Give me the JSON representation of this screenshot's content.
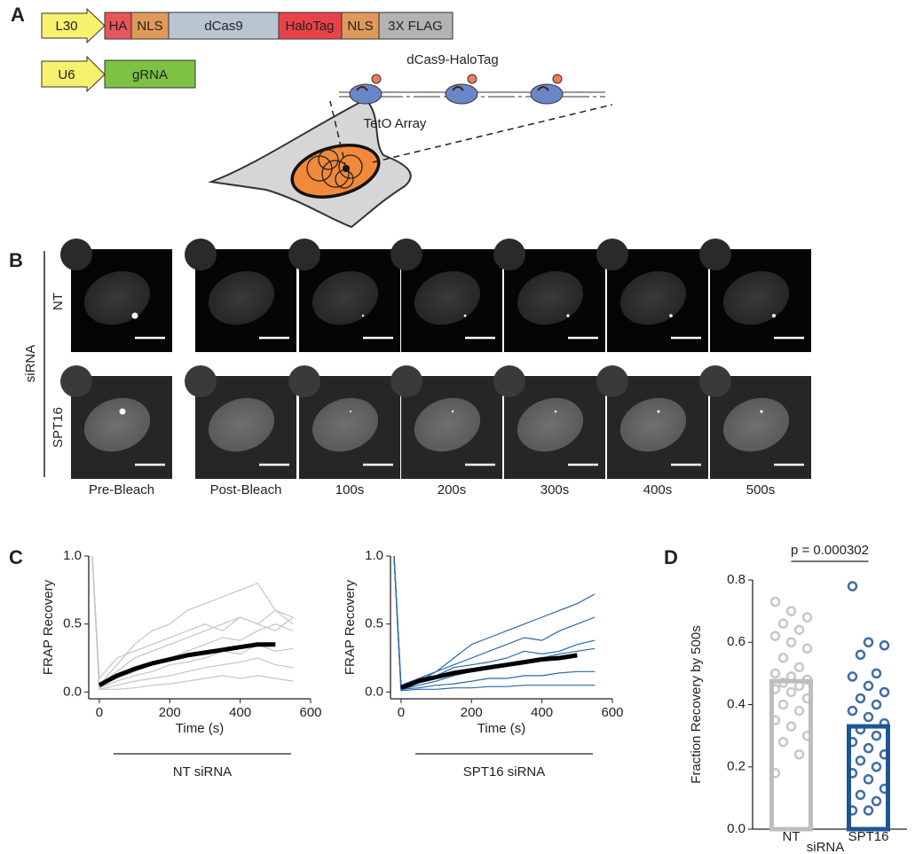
{
  "panel_labels": [
    "A",
    "B",
    "C",
    "D"
  ],
  "construct": {
    "promoter_1": "L30",
    "domains": [
      "HA",
      "NLS",
      "dCas9",
      "HaloTag",
      "NLS",
      "3X FLAG"
    ],
    "promoter_2": "U6",
    "guide": "gRNA",
    "protein_label": "dCas9-HaloTag",
    "array_label": "TetO Array"
  },
  "microscopy": {
    "group_label": "siRNA",
    "rows": [
      "NT",
      "SPT16"
    ],
    "timepoints": [
      "Pre-Bleach",
      "Post-Bleach",
      "100s",
      "200s",
      "300s",
      "400s",
      "500s"
    ]
  },
  "chart_data": [
    {
      "type": "line",
      "x": [
        -20,
        0,
        50,
        100,
        150,
        200,
        250,
        300,
        350,
        400,
        450,
        500,
        550
      ],
      "xlim": [
        -30,
        600
      ],
      "xticks": [
        0,
        200,
        400,
        600
      ],
      "ylim": [
        -0.05,
        1.0
      ],
      "yticks": [
        {
          "value": 0,
          "label": "0.0"
        },
        {
          "value": 0.5,
          "label": "0.5"
        },
        {
          "value": 1,
          "label": "1.0"
        }
      ],
      "xlabel": "Time (s)",
      "ylabel": "FRAP Recovery",
      "group_label": "NT siRNA",
      "series": [
        {
          "color": "#c4c4c4",
          "values": [
            1,
            0.05,
            0.2,
            0.35,
            0.45,
            0.5,
            0.6,
            0.65,
            0.7,
            0.75,
            0.8,
            0.6,
            0.55
          ]
        },
        {
          "color": "#c4c4c4",
          "values": [
            1,
            0.1,
            0.25,
            0.3,
            0.35,
            0.4,
            0.45,
            0.5,
            0.45,
            0.55,
            0.5,
            0.6,
            0.5
          ]
        },
        {
          "color": "#c4c4c4",
          "values": [
            1,
            0.05,
            0.1,
            0.15,
            0.2,
            0.25,
            0.3,
            0.35,
            0.4,
            0.38,
            0.45,
            0.5,
            0.45
          ]
        },
        {
          "color": "#c4c4c4",
          "values": [
            1,
            0.02,
            0.05,
            0.08,
            0.1,
            0.12,
            0.15,
            0.18,
            0.2,
            0.22,
            0.25,
            0.2,
            0.18
          ]
        },
        {
          "color": "#c4c4c4",
          "values": [
            1,
            0.03,
            0.08,
            0.12,
            0.15,
            0.2,
            0.22,
            0.25,
            0.3,
            0.28,
            0.35,
            0.3,
            0.32
          ]
        },
        {
          "color": "#c4c4c4",
          "values": [
            1,
            0.02,
            0.02,
            0.03,
            0.05,
            0.06,
            0.08,
            0.1,
            0.12,
            0.1,
            0.12,
            0.1,
            0.08
          ]
        },
        {
          "color": "#c4c4c4",
          "values": [
            1,
            0.05,
            0.15,
            0.25,
            0.3,
            0.35,
            0.4,
            0.45,
            0.5,
            0.55,
            0.5,
            0.45,
            0.55
          ]
        }
      ],
      "mean": {
        "color": "#000000",
        "values": [
          null,
          0.05,
          0.12,
          0.17,
          0.21,
          0.24,
          0.27,
          0.29,
          0.31,
          0.33,
          0.35,
          0.35,
          null
        ]
      }
    },
    {
      "type": "line",
      "x": [
        -20,
        0,
        50,
        100,
        150,
        200,
        250,
        300,
        350,
        400,
        450,
        500,
        550
      ],
      "xlim": [
        -30,
        600
      ],
      "xticks": [
        0,
        200,
        400,
        600
      ],
      "ylim": [
        -0.05,
        1.0
      ],
      "yticks": [
        {
          "value": 0,
          "label": "0.0"
        },
        {
          "value": 0.5,
          "label": "0.5"
        },
        {
          "value": 1,
          "label": "1.0"
        }
      ],
      "xlabel": "Time (s)",
      "ylabel": "FRAP Recovery",
      "group_label": "SPT16 siRNA",
      "series": [
        {
          "color": "#2a6aa8",
          "values": [
            1,
            0.05,
            0.1,
            0.15,
            0.25,
            0.35,
            0.4,
            0.45,
            0.5,
            0.55,
            0.6,
            0.65,
            0.72
          ]
        },
        {
          "color": "#2a6aa8",
          "values": [
            1,
            0.03,
            0.08,
            0.15,
            0.2,
            0.25,
            0.3,
            0.35,
            0.4,
            0.38,
            0.45,
            0.5,
            0.55
          ]
        },
        {
          "color": "#2a6aa8",
          "values": [
            1,
            0.02,
            0.05,
            0.08,
            0.12,
            0.15,
            0.18,
            0.2,
            0.22,
            0.25,
            0.28,
            0.3,
            0.32
          ]
        },
        {
          "color": "#2a6aa8",
          "values": [
            1,
            0.02,
            0.03,
            0.05,
            0.06,
            0.08,
            0.1,
            0.1,
            0.12,
            0.12,
            0.14,
            0.15,
            0.15
          ]
        },
        {
          "color": "#2a6aa8",
          "values": [
            1,
            0.01,
            0.02,
            0.02,
            0.03,
            0.03,
            0.04,
            0.04,
            0.05,
            0.05,
            0.05,
            0.05,
            0.05
          ]
        },
        {
          "color": "#2a6aa8",
          "values": [
            1,
            0.04,
            0.1,
            0.12,
            0.18,
            0.2,
            0.22,
            0.25,
            0.3,
            0.28,
            0.3,
            0.35,
            0.38
          ]
        }
      ],
      "mean": {
        "color": "#000000",
        "values": [
          null,
          0.03,
          0.08,
          0.11,
          0.14,
          0.16,
          0.18,
          0.2,
          0.22,
          0.24,
          0.25,
          0.27,
          null
        ]
      }
    },
    {
      "type": "bar",
      "categories": [
        "NT",
        "SPT16"
      ],
      "values": [
        0.475,
        0.33
      ],
      "colors": [
        "#bdbdbd",
        "#1f5594"
      ],
      "points": [
        [
          0.73,
          0.7,
          0.68,
          0.66,
          0.64,
          0.62,
          0.6,
          0.58,
          0.55,
          0.52,
          0.5,
          0.49,
          0.48,
          0.47,
          0.46,
          0.45,
          0.44,
          0.42,
          0.4,
          0.38,
          0.35,
          0.33,
          0.3,
          0.28,
          0.24,
          0.18
        ],
        [
          0.78,
          0.6,
          0.59,
          0.56,
          0.5,
          0.49,
          0.46,
          0.44,
          0.42,
          0.4,
          0.38,
          0.36,
          0.34,
          0.32,
          0.3,
          0.28,
          0.26,
          0.24,
          0.22,
          0.2,
          0.18,
          0.16,
          0.13,
          0.11,
          0.09,
          0.06,
          0.06
        ]
      ],
      "ylim": [
        0,
        0.8
      ],
      "yticks": [
        {
          "value": 0,
          "label": "0.0"
        },
        {
          "value": 0.2,
          "label": "0.2"
        },
        {
          "value": 0.4,
          "label": "0.4"
        },
        {
          "value": 0.6,
          "label": "0.6"
        },
        {
          "value": 0.8,
          "label": "0.8"
        }
      ],
      "ylabel": "Fraction Recovery by 500s",
      "xlabel": "siRNA",
      "annotation": "p = 0.000302"
    }
  ]
}
